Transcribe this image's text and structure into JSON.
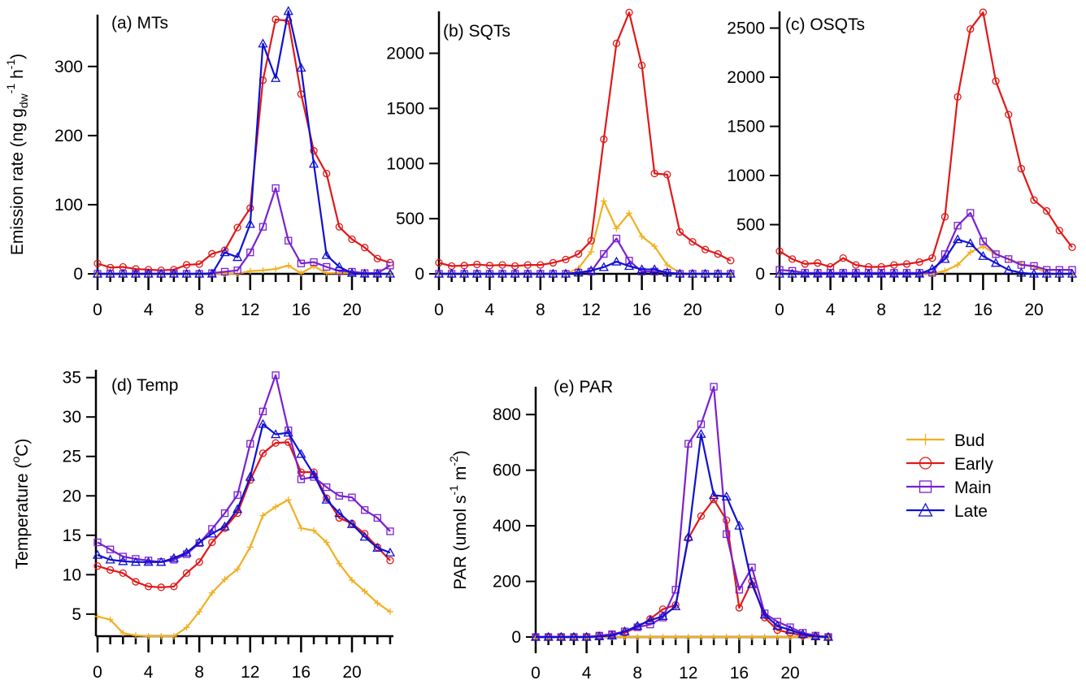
{
  "legend": {
    "placement": "right-bottom",
    "entries": [
      {
        "name": "Bud",
        "color": "#f0b020",
        "marker": "plus"
      },
      {
        "name": "Early",
        "color": "#e01818",
        "marker": "circle"
      },
      {
        "name": "Main",
        "color": "#7a20d0",
        "marker": "square"
      },
      {
        "name": "Late",
        "color": "#1010d0",
        "marker": "triangle"
      }
    ]
  },
  "chart_data": [
    {
      "id": "a",
      "type": "line",
      "title": "(a) MTs",
      "xlabel": "",
      "ylabel": "Emission rate (ng g_dw^-1 h^-1)",
      "ylabel_parts": {
        "main": "Emission rate (ng g",
        "sub": "dw",
        "mid": " h",
        "sup1": "-1",
        "sup2": "-1",
        "end": ")"
      },
      "x": [
        0,
        1,
        2,
        3,
        4,
        5,
        6,
        7,
        8,
        9,
        10,
        11,
        12,
        13,
        14,
        15,
        16,
        17,
        18,
        19,
        20,
        21,
        22,
        23
      ],
      "xlim": [
        0,
        23
      ],
      "xticks": [
        0,
        4,
        8,
        12,
        16,
        20
      ],
      "ylim": [
        0,
        375
      ],
      "yticks": [
        0,
        100,
        200,
        300
      ],
      "series": [
        {
          "name": "Bud",
          "values": [
            0,
            0,
            0,
            0,
            0,
            0,
            0,
            0,
            0,
            0,
            0,
            0,
            4,
            5,
            7,
            12,
            1,
            11,
            1,
            1,
            1,
            0,
            0,
            0
          ]
        },
        {
          "name": "Early",
          "values": [
            15,
            9,
            10,
            7,
            6,
            5,
            6,
            13,
            14,
            29,
            34,
            67,
            95,
            280,
            368,
            366,
            260,
            178,
            145,
            68,
            50,
            38,
            22,
            16
          ]
        },
        {
          "name": "Main",
          "values": [
            0,
            0,
            0,
            0,
            0,
            0,
            0,
            0,
            0,
            1,
            3,
            5,
            31,
            68,
            124,
            48,
            15,
            17,
            10,
            4,
            3,
            1,
            1,
            12
          ]
        },
        {
          "name": "Late",
          "values": [
            0,
            0,
            0,
            0,
            0,
            0,
            0,
            0,
            0,
            0,
            31,
            24,
            72,
            333,
            283,
            380,
            298,
            159,
            27,
            10,
            1,
            0,
            0,
            0
          ]
        }
      ]
    },
    {
      "id": "b",
      "type": "line",
      "title": "(b) SQTs",
      "xlabel": "",
      "ylabel": "",
      "x": [
        0,
        1,
        2,
        3,
        4,
        5,
        6,
        7,
        8,
        9,
        10,
        11,
        12,
        13,
        14,
        15,
        16,
        17,
        18,
        19,
        20,
        21,
        22,
        23
      ],
      "xlim": [
        0,
        23
      ],
      "xticks": [
        0,
        4,
        8,
        12,
        16,
        20
      ],
      "ylim": [
        0,
        2380
      ],
      "yticks": [
        0,
        500,
        1000,
        1500,
        2000
      ],
      "series": [
        {
          "name": "Bud",
          "values": [
            0,
            0,
            0,
            0,
            0,
            0,
            0,
            10,
            0,
            0,
            0,
            50,
            200,
            660,
            410,
            550,
            340,
            250,
            80,
            10,
            0,
            0,
            0,
            0
          ]
        },
        {
          "name": "Early",
          "values": [
            100,
            70,
            75,
            85,
            75,
            80,
            70,
            80,
            80,
            100,
            130,
            180,
            300,
            1220,
            2090,
            2370,
            1890,
            910,
            900,
            380,
            290,
            220,
            180,
            120
          ]
        },
        {
          "name": "Main",
          "values": [
            0,
            0,
            0,
            0,
            0,
            0,
            0,
            0,
            0,
            0,
            0,
            10,
            20,
            180,
            320,
            120,
            20,
            20,
            10,
            0,
            0,
            0,
            0,
            0
          ]
        },
        {
          "name": "Late",
          "values": [
            0,
            0,
            0,
            0,
            0,
            0,
            0,
            0,
            0,
            0,
            0,
            10,
            30,
            60,
            110,
            70,
            40,
            40,
            10,
            0,
            0,
            0,
            0,
            0
          ]
        }
      ]
    },
    {
      "id": "c",
      "type": "line",
      "title": "(c) OSQTs",
      "xlabel": "",
      "ylabel": "",
      "x": [
        0,
        1,
        2,
        3,
        4,
        5,
        6,
        7,
        8,
        9,
        10,
        11,
        12,
        13,
        14,
        15,
        16,
        17,
        18,
        19,
        20,
        21,
        22,
        23
      ],
      "xlim": [
        0,
        23
      ],
      "xticks": [
        0,
        4,
        8,
        12,
        16,
        20
      ],
      "ylim": [
        0,
        2670
      ],
      "yticks": [
        0,
        500,
        1000,
        1500,
        2000,
        2500
      ],
      "series": [
        {
          "name": "Bud",
          "values": [
            0,
            0,
            0,
            0,
            0,
            0,
            0,
            0,
            0,
            0,
            0,
            0,
            0,
            30,
            90,
            220,
            280,
            200,
            150,
            100,
            70,
            10,
            0,
            0
          ]
        },
        {
          "name": "Early",
          "values": [
            230,
            150,
            100,
            110,
            70,
            160,
            90,
            70,
            70,
            90,
            100,
            120,
            160,
            580,
            1800,
            2490,
            2660,
            1960,
            1620,
            1070,
            750,
            640,
            440,
            270
          ]
        },
        {
          "name": "Main",
          "values": [
            40,
            30,
            10,
            10,
            10,
            10,
            10,
            10,
            10,
            10,
            10,
            10,
            10,
            200,
            490,
            620,
            330,
            200,
            150,
            90,
            80,
            40,
            40,
            40
          ]
        },
        {
          "name": "Late",
          "values": [
            0,
            0,
            0,
            0,
            0,
            0,
            0,
            0,
            0,
            0,
            0,
            0,
            50,
            150,
            350,
            310,
            180,
            110,
            40,
            10,
            0,
            0,
            0,
            0
          ]
        }
      ]
    },
    {
      "id": "d",
      "type": "line",
      "title": "(d) Temp",
      "xlabel": "",
      "ylabel": "Temperature (°C)",
      "ylabel_parts": {
        "main": "Temperature (",
        "sup": "o",
        "end": "C)"
      },
      "x": [
        0,
        1,
        2,
        3,
        4,
        5,
        6,
        7,
        8,
        9,
        10,
        11,
        12,
        13,
        14,
        15,
        16,
        17,
        18,
        19,
        20,
        21,
        22,
        23
      ],
      "xlim": [
        0,
        23
      ],
      "xticks": [
        0,
        4,
        8,
        12,
        16,
        20
      ],
      "ylim": [
        2.2,
        36
      ],
      "yticks": [
        5,
        10,
        15,
        20,
        25,
        30,
        35
      ],
      "series": [
        {
          "name": "Bud",
          "values": [
            4.7,
            4.3,
            2.6,
            2.3,
            2.1,
            2.1,
            2.1,
            3.3,
            5.3,
            7.7,
            9.4,
            10.7,
            13.5,
            17.5,
            18.6,
            19.5,
            15.9,
            15.6,
            14.1,
            11.4,
            9.3,
            7.9,
            6.4,
            5.3
          ]
        },
        {
          "name": "Early",
          "values": [
            11.1,
            10.6,
            10.2,
            9.1,
            8.5,
            8.4,
            8.5,
            10.2,
            11.6,
            14.1,
            15.9,
            17.8,
            22.0,
            25.4,
            26.7,
            26.8,
            23.0,
            23.0,
            19.7,
            17.2,
            16.5,
            15.2,
            13.5,
            11.8
          ]
        },
        {
          "name": "Main",
          "values": [
            14.1,
            13.2,
            12.3,
            12.0,
            11.8,
            11.6,
            11.9,
            12.6,
            14.0,
            15.8,
            17.8,
            20.1,
            26.6,
            30.7,
            35.3,
            28.3,
            22.1,
            22.4,
            21.1,
            20.0,
            19.8,
            18.2,
            17.2,
            15.5
          ]
        },
        {
          "name": "Late",
          "values": [
            12.5,
            11.9,
            11.7,
            11.6,
            11.6,
            11.6,
            12.1,
            12.8,
            14.1,
            15.2,
            16.1,
            18.3,
            22.4,
            29.1,
            27.8,
            28.0,
            25.3,
            22.7,
            19.5,
            17.8,
            16.4,
            14.8,
            13.4,
            12.8
          ]
        }
      ]
    },
    {
      "id": "e",
      "type": "line",
      "title": "(e) PAR",
      "xlabel": "",
      "ylabel": "PAR (umol s^-1 m^-2)",
      "ylabel_parts": {
        "main": "PAR (umol s",
        "sup1": "-1",
        "mid": " m",
        "sup2": "-2",
        "end": ")"
      },
      "x": [
        0,
        1,
        2,
        3,
        4,
        5,
        6,
        7,
        8,
        9,
        10,
        11,
        12,
        13,
        14,
        15,
        16,
        17,
        18,
        19,
        20,
        21,
        22,
        23
      ],
      "xlim": [
        0,
        23
      ],
      "xticks": [
        0,
        4,
        8,
        12,
        16,
        20
      ],
      "ylim": [
        0,
        900
      ],
      "yticks": [
        0,
        200,
        400,
        600,
        800
      ],
      "series": [
        {
          "name": "Bud",
          "values": [
            0,
            0,
            0,
            0,
            0,
            0,
            0,
            0,
            0,
            0,
            0,
            0,
            0,
            0,
            0,
            0,
            0,
            0,
            0,
            0,
            0,
            0,
            0,
            0
          ]
        },
        {
          "name": "Early",
          "values": [
            0,
            0,
            0,
            0,
            0,
            5,
            10,
            15,
            35,
            65,
            100,
            115,
            355,
            435,
            495,
            420,
            105,
            200,
            70,
            25,
            15,
            5,
            2,
            0
          ]
        },
        {
          "name": "Main",
          "values": [
            0,
            0,
            0,
            0,
            0,
            5,
            10,
            20,
            35,
            45,
            70,
            170,
            695,
            765,
            900,
            370,
            170,
            250,
            85,
            55,
            35,
            15,
            5,
            0
          ]
        },
        {
          "name": "Late",
          "values": [
            0,
            0,
            0,
            0,
            0,
            2,
            5,
            20,
            40,
            60,
            75,
            110,
            360,
            730,
            510,
            505,
            400,
            190,
            80,
            40,
            25,
            10,
            2,
            0
          ]
        }
      ]
    }
  ]
}
